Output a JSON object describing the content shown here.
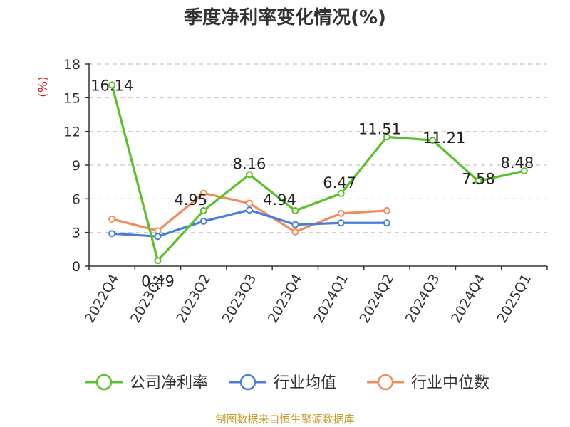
{
  "chart_data": {
    "type": "line",
    "title": "季度净利率变化情况(%)",
    "ylabel": "(%)",
    "xlabel": "",
    "ylim": [
      0,
      18
    ],
    "yticks": [
      0,
      3,
      6,
      9,
      12,
      15,
      18
    ],
    "grid": true,
    "legend_position": "bottom",
    "categories": [
      "2022Q4",
      "2023Q1",
      "2023Q2",
      "2023Q3",
      "2023Q4",
      "2024Q1",
      "2024Q2",
      "2024Q3",
      "2024Q4",
      "2025Q1"
    ],
    "series": [
      {
        "name": "公司净利率",
        "color": "#5ac02a",
        "values": [
          16.14,
          0.49,
          4.95,
          8.16,
          4.94,
          6.47,
          11.51,
          11.21,
          7.58,
          8.48
        ],
        "labels": [
          "16.14",
          "0.49",
          "4.95",
          "8.16",
          "4.94",
          "6.47",
          "11.51",
          "11.21",
          "7.58",
          "8.48"
        ]
      },
      {
        "name": "行业均值",
        "color": "#4a7fd8",
        "values": [
          2.9,
          2.65,
          4.0,
          5.0,
          3.7,
          3.85,
          3.85,
          null,
          null,
          null
        ]
      },
      {
        "name": "行业中位数",
        "color": "#f28b5a",
        "values": [
          4.2,
          3.15,
          6.5,
          5.6,
          3.05,
          4.7,
          4.95,
          null,
          null,
          null
        ]
      }
    ]
  },
  "source_note": "制图数据来自恒生聚源数据库"
}
